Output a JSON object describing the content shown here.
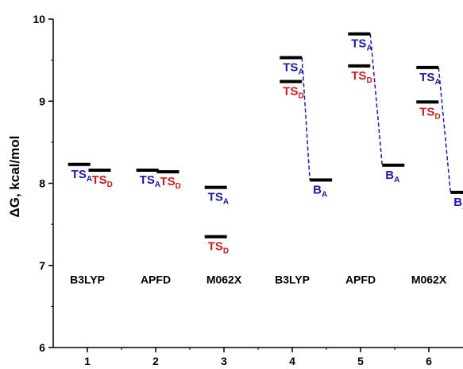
{
  "colors": {
    "blue": "#1a1aa6",
    "red": "#cc1a1a",
    "black": "#000000"
  },
  "chart_data": {
    "type": "scatter",
    "xlabel": "",
    "ylabel": "ΔG, kcal/mol",
    "xlim": [
      0.5,
      6.5
    ],
    "ylim": [
      6,
      10
    ],
    "xticks": [
      "1",
      "2",
      "3",
      "4",
      "5",
      "6"
    ],
    "yticks": [
      "6",
      "7",
      "8",
      "9",
      "10"
    ],
    "method_labels": [
      {
        "x": 1,
        "text": "B3LYP"
      },
      {
        "x": 2,
        "text": "APFD"
      },
      {
        "x": 3,
        "text": "M062X"
      },
      {
        "x": 4,
        "text": "B3LYP"
      },
      {
        "x": 5,
        "text": "APFD"
      },
      {
        "x": 6,
        "text": "M062X"
      }
    ],
    "levels": [
      {
        "x": 0.88,
        "y": 8.23,
        "label": "TS",
        "sub": "A",
        "color": "blue"
      },
      {
        "x": 1.18,
        "y": 8.16,
        "label": "TS",
        "sub": "D",
        "color": "red"
      },
      {
        "x": 1.88,
        "y": 8.16,
        "label": "TS",
        "sub": "A",
        "color": "blue"
      },
      {
        "x": 2.18,
        "y": 8.14,
        "label": "TS",
        "sub": "D",
        "color": "red"
      },
      {
        "x": 2.88,
        "y": 7.95,
        "label": "TS",
        "sub": "A",
        "color": "blue"
      },
      {
        "x": 2.88,
        "y": 7.35,
        "label": "TS",
        "sub": "D",
        "color": "red"
      },
      {
        "x": 3.98,
        "y": 9.53,
        "label": "TS",
        "sub": "A",
        "color": "blue"
      },
      {
        "x": 3.98,
        "y": 9.24,
        "label": "TS",
        "sub": "D",
        "color": "red"
      },
      {
        "x": 4.42,
        "y": 8.04,
        "label": "B",
        "sub": "A",
        "color": "blue"
      },
      {
        "x": 4.98,
        "y": 9.82,
        "label": "TS",
        "sub": "A",
        "color": "blue"
      },
      {
        "x": 4.98,
        "y": 9.43,
        "label": "TS",
        "sub": "D",
        "color": "red"
      },
      {
        "x": 5.48,
        "y": 8.22,
        "label": "B",
        "sub": "A",
        "color": "blue"
      },
      {
        "x": 5.98,
        "y": 9.41,
        "label": "TS",
        "sub": "A",
        "color": "blue"
      },
      {
        "x": 5.98,
        "y": 8.99,
        "label": "TS",
        "sub": "D",
        "color": "red"
      },
      {
        "x": 6.48,
        "y": 7.89,
        "label": "B",
        "sub": "A",
        "color": "blue"
      }
    ],
    "connections": [
      {
        "from": 6,
        "to": 8
      },
      {
        "from": 9,
        "to": 11
      },
      {
        "from": 12,
        "to": 14
      }
    ],
    "grid": false,
    "legend": "none"
  }
}
